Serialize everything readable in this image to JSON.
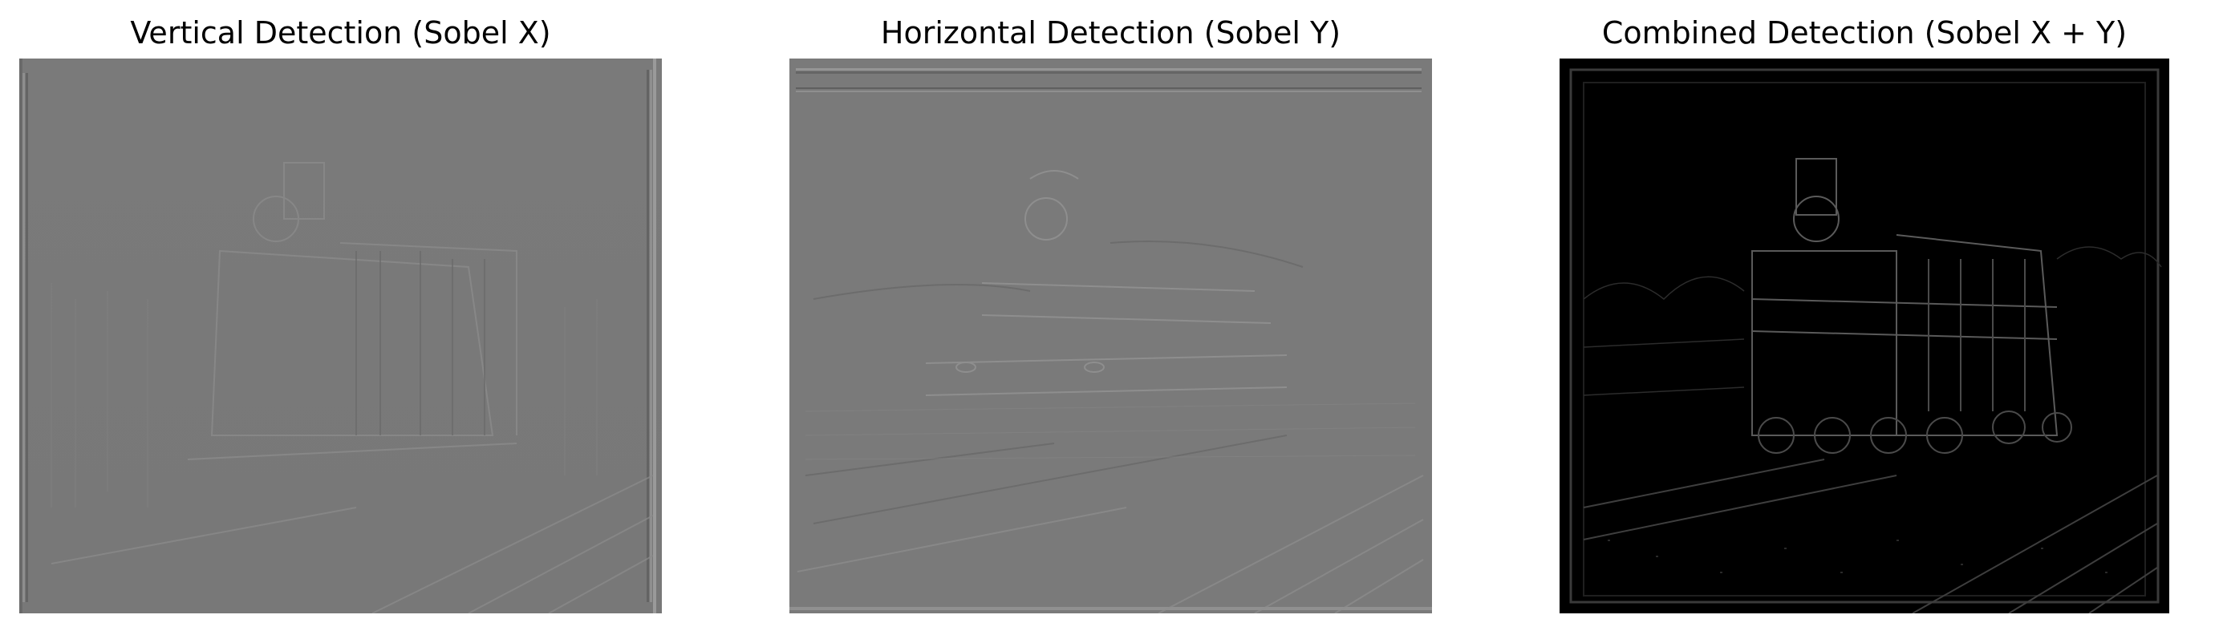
{
  "figure": {
    "panels": [
      {
        "title": "Vertical Detection (Sobel X)",
        "image": {
          "content": "sobel-x-gradient-map",
          "background": "#7a7a7a"
        }
      },
      {
        "title": "Horizontal Detection (Sobel Y)",
        "image": {
          "content": "sobel-y-gradient-map",
          "background": "#7a7a7a"
        }
      },
      {
        "title": "Combined Detection (Sobel X + Y)",
        "image": {
          "content": "sobel-magnitude-map",
          "background": "#000000"
        }
      }
    ]
  }
}
